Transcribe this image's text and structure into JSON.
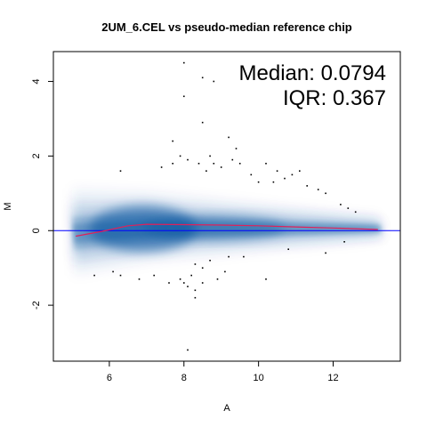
{
  "chart_data": {
    "type": "scatter",
    "title": "2UM_6.CEL vs pseudo-median reference chip",
    "xlabel": "A",
    "ylabel": "M",
    "xlim": [
      4.5,
      13.8
    ],
    "ylim": [
      -3.5,
      4.8
    ],
    "xticks": [
      6,
      8,
      10,
      12
    ],
    "yticks": [
      -2,
      0,
      2,
      4
    ],
    "annotations": {
      "median": "Median: 0.0794",
      "iqr": "IQR: 0.367"
    },
    "zero_line_color": "#0000ff",
    "loess_color": "#e0205a",
    "density_color": "#08519c",
    "loess_curve": {
      "x": [
        5.1,
        5.8,
        6.5,
        7.0,
        8.0,
        9.0,
        10.0,
        11.0,
        12.0,
        13.2
      ],
      "y": [
        -0.15,
        -0.02,
        0.13,
        0.17,
        0.16,
        0.15,
        0.13,
        0.1,
        0.07,
        0.03
      ]
    },
    "outliers": {
      "x": [
        8.0,
        8.5,
        8.8,
        8.0,
        8.5,
        9.2,
        9.4,
        7.7,
        7.9,
        8.1,
        8.7,
        8.8,
        9.3,
        6.3,
        7.4,
        7.7,
        8.4,
        8.6,
        9.0,
        9.5,
        10.2,
        10.5,
        10.7,
        10.9,
        11.1,
        9.8,
        10.0,
        10.4,
        11.3,
        11.6,
        11.8,
        12.2,
        12.4,
        12.6,
        8.3,
        8.5,
        8.7,
        8.2,
        8.9,
        9.1,
        7.9,
        8.0,
        7.6,
        8.1,
        8.3,
        8.5,
        9.2,
        9.6,
        10.2,
        5.6,
        6.1,
        6.3,
        6.8,
        7.2,
        10.8,
        11.8,
        12.3,
        8.3,
        8.1
      ],
      "y": [
        4.5,
        4.1,
        4.0,
        3.6,
        2.9,
        2.5,
        2.2,
        2.4,
        2.0,
        1.9,
        2.0,
        1.8,
        1.9,
        1.6,
        1.7,
        1.8,
        1.8,
        1.6,
        1.7,
        1.8,
        1.8,
        1.6,
        1.4,
        1.5,
        1.6,
        1.5,
        1.3,
        1.3,
        1.2,
        1.1,
        1.0,
        0.7,
        0.6,
        0.5,
        -0.9,
        -1.0,
        -0.8,
        -1.2,
        -1.3,
        -1.1,
        -1.3,
        -1.4,
        -1.4,
        -1.5,
        -1.6,
        -1.4,
        -0.7,
        -0.7,
        -1.3,
        -1.2,
        -1.1,
        -1.2,
        -1.3,
        -1.2,
        -0.5,
        -0.6,
        -0.3,
        -1.8,
        -3.2
      ]
    }
  }
}
